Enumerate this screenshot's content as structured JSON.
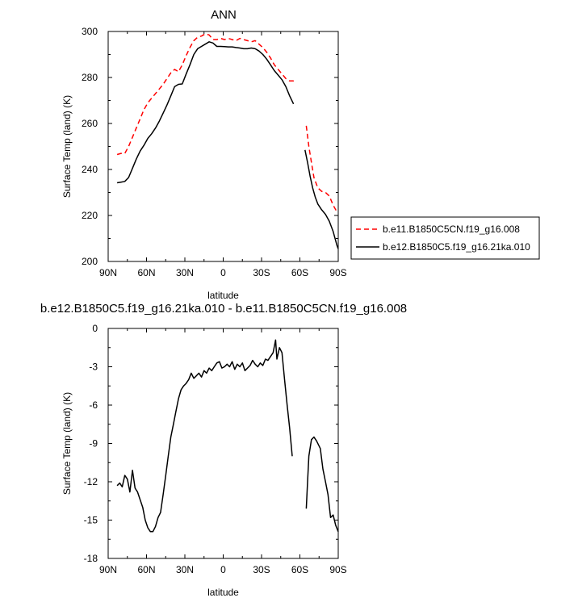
{
  "chart_data": [
    {
      "type": "line",
      "title": "ANN",
      "xlabel": "latitude",
      "ylabel": "Surface Temp (land) (K)",
      "xlim": [
        90,
        -90
      ],
      "ylim": [
        200,
        300
      ],
      "x_ticks": [
        90,
        60,
        30,
        0,
        -30,
        -60,
        -90
      ],
      "x_tick_labels": [
        "90N",
        "60N",
        "30N",
        "0",
        "30S",
        "60S",
        "90S"
      ],
      "y_ticks": [
        200,
        220,
        240,
        260,
        280,
        300
      ],
      "y_tick_labels": [
        "200",
        "220",
        "240",
        "260",
        "280",
        "300"
      ],
      "grid": false,
      "legend_position": "right",
      "series": [
        {
          "name": "b.e11.B1850C5CN.f19_g16.008",
          "color": "#ff0000",
          "dash": "dashed",
          "segments": [
            [
              [
                83,
                246.5
              ],
              [
                80,
                247.0
              ],
              [
                77,
                247.0
              ],
              [
                74,
                250.0
              ],
              [
                71,
                254.0
              ],
              [
                68,
                258.0
              ],
              [
                65,
                262.0
              ],
              [
                62,
                266.0
              ],
              [
                59,
                269.0
              ],
              [
                56,
                271.0
              ],
              [
                53,
                273.0
              ],
              [
                50,
                275.0
              ],
              [
                47,
                277.0
              ],
              [
                44,
                279.5
              ],
              [
                41,
                282.0
              ],
              [
                38,
                283.5
              ],
              [
                35,
                282.5
              ],
              [
                32,
                285.5
              ],
              [
                29,
                289.5
              ],
              [
                26,
                293.0
              ],
              [
                23,
                296.0
              ],
              [
                20,
                297.5
              ],
              [
                17,
                298.0
              ],
              [
                14,
                299.0
              ],
              [
                11,
                298.5
              ],
              [
                8,
                296.5
              ],
              [
                5,
                296.5
              ],
              [
                2,
                297.0
              ],
              [
                -1,
                296.5
              ],
              [
                -4,
                297.0
              ],
              [
                -7,
                296.5
              ],
              [
                -10,
                296.0
              ],
              [
                -13,
                297.0
              ],
              [
                -16,
                296.5
              ],
              [
                -19,
                296.0
              ],
              [
                -22,
                295.5
              ],
              [
                -25,
                296.0
              ],
              [
                -28,
                294.5
              ],
              [
                -31,
                293.0
              ],
              [
                -34,
                291.0
              ],
              [
                -37,
                288.5
              ],
              [
                -40,
                285.5
              ],
              [
                -43,
                283.5
              ],
              [
                -46,
                281.5
              ],
              [
                -49,
                279.5
              ],
              [
                -52,
                278.5
              ],
              [
                -55,
                278.5
              ],
              [
                -57,
                278.8
              ]
            ],
            [
              [
                -65,
                259.0
              ],
              [
                -67,
                250.0
              ],
              [
                -69,
                243.0
              ],
              [
                -71,
                236.5
              ],
              [
                -74,
                232.0
              ],
              [
                -77,
                230.5
              ],
              [
                -80,
                230.0
              ],
              [
                -83,
                228.5
              ],
              [
                -86,
                224.5
              ],
              [
                -89,
                221.5
              ]
            ]
          ]
        },
        {
          "name": "b.e12.B1850C5.f19_g16.21ka.010",
          "color": "#000000",
          "dash": "solid",
          "segments": [
            [
              [
                83,
                234.2
              ],
              [
                80,
                234.5
              ],
              [
                77,
                234.8
              ],
              [
                74,
                236.5
              ],
              [
                71,
                240.5
              ],
              [
                68,
                244.5
              ],
              [
                65,
                248.0
              ],
              [
                62,
                250.5
              ],
              [
                59,
                253.5
              ],
              [
                56,
                255.5
              ],
              [
                53,
                258.0
              ],
              [
                50,
                261.0
              ],
              [
                47,
                264.5
              ],
              [
                44,
                268.0
              ],
              [
                41,
                272.0
              ],
              [
                38,
                276.0
              ],
              [
                35,
                277.0
              ],
              [
                32,
                277.2
              ],
              [
                29,
                281.5
              ],
              [
                26,
                285.5
              ],
              [
                23,
                290.0
              ],
              [
                20,
                292.5
              ],
              [
                17,
                293.5
              ],
              [
                14,
                294.5
              ],
              [
                11,
                295.5
              ],
              [
                8,
                295.0
              ],
              [
                5,
                293.5
              ],
              [
                2,
                293.5
              ],
              [
                -1,
                293.4
              ],
              [
                -4,
                293.3
              ],
              [
                -7,
                293.3
              ],
              [
                -10,
                293.0
              ],
              [
                -13,
                292.8
              ],
              [
                -16,
                292.5
              ],
              [
                -19,
                292.5
              ],
              [
                -22,
                292.8
              ],
              [
                -25,
                292.5
              ],
              [
                -28,
                291.5
              ],
              [
                -31,
                290.0
              ],
              [
                -34,
                288.0
              ],
              [
                -37,
                285.5
              ],
              [
                -40,
                283.0
              ],
              [
                -43,
                281.0
              ],
              [
                -46,
                279.0
              ],
              [
                -49,
                276.0
              ],
              [
                -52,
                272.0
              ],
              [
                -55,
                268.5
              ]
            ],
            [
              [
                -64,
                248.5
              ],
              [
                -66,
                243.0
              ],
              [
                -68,
                237.0
              ],
              [
                -70,
                232.0
              ],
              [
                -72,
                228.0
              ],
              [
                -74,
                225.0
              ],
              [
                -77,
                222.5
              ],
              [
                -80,
                220.5
              ],
              [
                -83,
                217.5
              ],
              [
                -86,
                213.0
              ],
              [
                -89,
                207.0
              ],
              [
                -90,
                205.5
              ]
            ]
          ]
        }
      ]
    },
    {
      "type": "line",
      "title": "b.e12.B1850C5.f19_g16.21ka.010 - b.e11.B1850C5CN.f19_g16.008",
      "xlabel": "latitude",
      "ylabel": "Surface Temp (land) (K)",
      "xlim": [
        90,
        -90
      ],
      "ylim": [
        -18,
        0
      ],
      "x_ticks": [
        90,
        60,
        30,
        0,
        -30,
        -60,
        -90
      ],
      "x_tick_labels": [
        "90N",
        "60N",
        "30N",
        "0",
        "30S",
        "60S",
        "90S"
      ],
      "y_ticks": [
        0,
        -3,
        -6,
        -9,
        -12,
        -15,
        -18
      ],
      "y_tick_labels": [
        "0",
        "-3",
        "-6",
        "-9",
        "-12",
        "-15",
        "-18"
      ],
      "grid": false,
      "series": [
        {
          "color": "#000000",
          "dash": "solid",
          "segments": [
            [
              [
                83,
                -12.3
              ],
              [
                81,
                -12.1
              ],
              [
                79,
                -12.4
              ],
              [
                77,
                -11.5
              ],
              [
                75,
                -11.8
              ],
              [
                73,
                -12.8
              ],
              [
                71,
                -11.1
              ],
              [
                69,
                -12.5
              ],
              [
                67,
                -12.8
              ],
              [
                65,
                -13.4
              ],
              [
                63,
                -14.0
              ],
              [
                61,
                -15.0
              ],
              [
                59,
                -15.6
              ],
              [
                57,
                -15.9
              ],
              [
                55,
                -15.9
              ],
              [
                53,
                -15.5
              ],
              [
                51,
                -14.8
              ],
              [
                49,
                -14.4
              ],
              [
                47,
                -13.0
              ],
              [
                45,
                -11.5
              ],
              [
                43,
                -10.0
              ],
              [
                41,
                -8.5
              ],
              [
                39,
                -7.5
              ],
              [
                37,
                -6.5
              ],
              [
                35,
                -5.5
              ],
              [
                33,
                -4.8
              ],
              [
                31,
                -4.5
              ],
              [
                29,
                -4.3
              ],
              [
                27,
                -4.0
              ],
              [
                25,
                -3.5
              ],
              [
                23,
                -3.9
              ],
              [
                21,
                -3.7
              ],
              [
                19,
                -3.5
              ],
              [
                17,
                -3.8
              ],
              [
                15,
                -3.3
              ],
              [
                13,
                -3.5
              ],
              [
                11,
                -3.1
              ],
              [
                9,
                -3.3
              ],
              [
                7,
                -3.0
              ],
              [
                5,
                -2.7
              ],
              [
                3,
                -2.6
              ],
              [
                1,
                -3.1
              ],
              [
                -1,
                -3.0
              ],
              [
                -3,
                -2.8
              ],
              [
                -5,
                -3.0
              ],
              [
                -7,
                -2.6
              ],
              [
                -9,
                -3.2
              ],
              [
                -11,
                -2.8
              ],
              [
                -13,
                -3.0
              ],
              [
                -15,
                -2.7
              ],
              [
                -17,
                -3.3
              ],
              [
                -19,
                -3.1
              ],
              [
                -21,
                -2.9
              ],
              [
                -23,
                -2.5
              ],
              [
                -25,
                -2.8
              ],
              [
                -27,
                -3.0
              ],
              [
                -29,
                -2.7
              ],
              [
                -31,
                -2.9
              ],
              [
                -33,
                -2.4
              ],
              [
                -35,
                -2.5
              ],
              [
                -37,
                -2.2
              ],
              [
                -39,
                -1.9
              ],
              [
                -41,
                -0.9
              ],
              [
                -42,
                -2.4
              ],
              [
                -44,
                -1.5
              ],
              [
                -46,
                -1.9
              ],
              [
                -48,
                -4.0
              ],
              [
                -50,
                -6.0
              ],
              [
                -52,
                -7.8
              ],
              [
                -54,
                -10.0
              ]
            ],
            [
              [
                -65,
                -14.1
              ],
              [
                -66,
                -12.0
              ],
              [
                -67,
                -10.0
              ],
              [
                -69,
                -8.7
              ],
              [
                -71,
                -8.5
              ],
              [
                -73,
                -8.8
              ],
              [
                -76,
                -9.4
              ],
              [
                -78,
                -11.0
              ],
              [
                -80,
                -12.0
              ],
              [
                -82,
                -13.0
              ],
              [
                -84,
                -14.8
              ],
              [
                -86,
                -14.6
              ],
              [
                -88,
                -15.4
              ],
              [
                -90,
                -15.9
              ]
            ]
          ]
        }
      ]
    }
  ]
}
